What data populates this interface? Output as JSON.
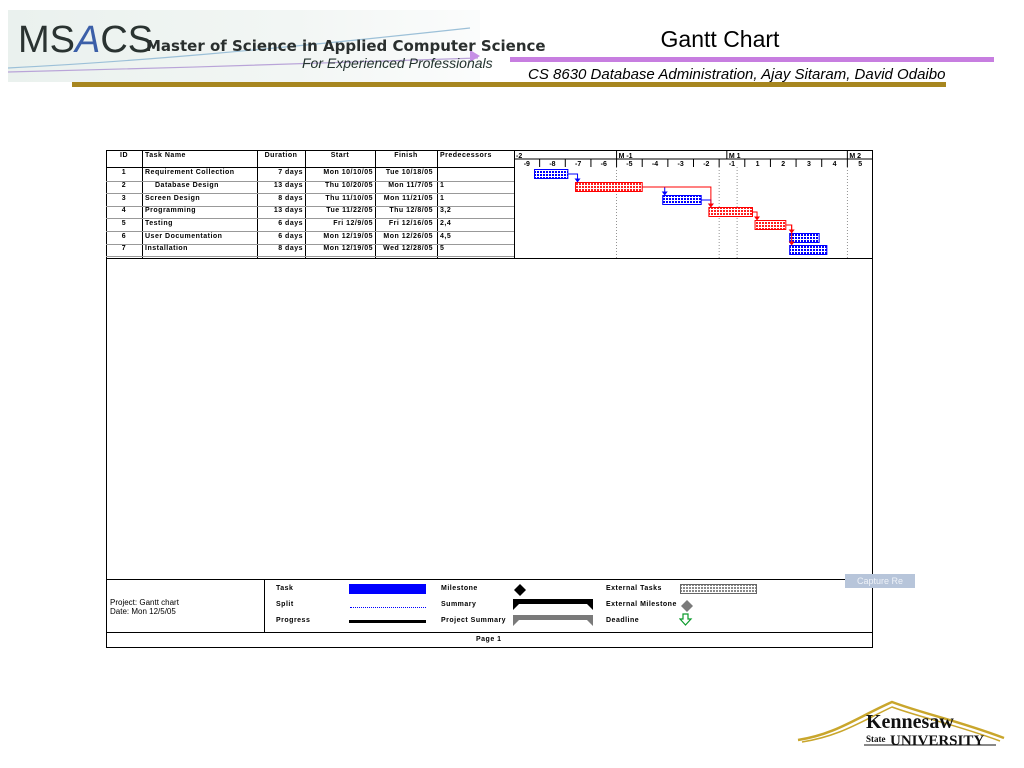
{
  "header": {
    "logo_ms": "MS",
    "logo_a": "A",
    "logo_cs": "CS",
    "logo_text": "Master of Science in Applied Computer Science",
    "logo_tagline": "For Experienced Professionals",
    "slide_title": "Gantt Chart",
    "course_line": "CS 8630 Database Administration, Ajay Sitaram, David Odaibo"
  },
  "colors": {
    "logo_blue": "#3b5fa8",
    "purple_rule": "#c77ee0",
    "gold_rule": "#a7861f",
    "task_blue": "#0000ff",
    "critical_red": "#ff0000"
  },
  "chart_data": {
    "type": "gantt",
    "columns": [
      "ID",
      "Task Name",
      "Duration",
      "Start",
      "Finish",
      "Predecessors"
    ],
    "timescale_top": [
      "-2",
      "M -1",
      "M 1",
      "M 2"
    ],
    "timescale_bottom": [
      "-9",
      "-8",
      "-7",
      "-6",
      "-5",
      "-4",
      "-3",
      "-2",
      "-1",
      "1",
      "2",
      "3",
      "4",
      "5"
    ],
    "tasks": [
      {
        "id": "1",
        "name": "Requirement Collection",
        "duration": "7 days",
        "start": "Mon 10/10/05",
        "finish": "Tue 10/18/05",
        "predecessors": "",
        "indent": 0,
        "critical": false
      },
      {
        "id": "2",
        "name": "Database Design",
        "duration": "13 days",
        "start": "Thu 10/20/05",
        "finish": "Mon 11/7/05",
        "predecessors": "1",
        "indent": 1,
        "critical": true
      },
      {
        "id": "3",
        "name": "Screen Design",
        "duration": "8 days",
        "start": "Thu 11/10/05",
        "finish": "Mon 11/21/05",
        "predecessors": "1",
        "indent": 0,
        "critical": false
      },
      {
        "id": "4",
        "name": "Programming",
        "duration": "13 days",
        "start": "Tue 11/22/05",
        "finish": "Thu 12/8/05",
        "predecessors": "3,2",
        "indent": 0,
        "critical": true
      },
      {
        "id": "5",
        "name": "Testing",
        "duration": "6 days",
        "start": "Fri 12/9/05",
        "finish": "Fri 12/16/05",
        "predecessors": "2,4",
        "indent": 0,
        "critical": true
      },
      {
        "id": "6",
        "name": "User Documentation",
        "duration": "6 days",
        "start": "Mon 12/19/05",
        "finish": "Mon 12/26/05",
        "predecessors": "4,5",
        "indent": 0,
        "critical": false
      },
      {
        "id": "7",
        "name": "Installation",
        "duration": "8 days",
        "start": "Mon 12/19/05",
        "finish": "Wed 12/28/05",
        "predecessors": "5",
        "indent": 0,
        "critical": false
      }
    ],
    "bars": [
      {
        "task": "1",
        "start_week": -8.2,
        "end_week": -6.9
      },
      {
        "task": "2",
        "start_week": -6.6,
        "end_week": -4.0
      },
      {
        "task": "3",
        "start_week": -3.2,
        "end_week": -1.7
      },
      {
        "task": "4",
        "start_week": -1.4,
        "end_week": 1.3
      },
      {
        "task": "5",
        "start_week": 1.4,
        "end_week": 2.6
      },
      {
        "task": "6",
        "start_week": 2.75,
        "end_week": 3.9
      },
      {
        "task": "7",
        "start_week": 2.75,
        "end_week": 4.2
      }
    ]
  },
  "footer": {
    "project": "Project: Gantt chart",
    "date": "Date: Mon 12/5/05",
    "legend": {
      "task": "Task",
      "split": "Split",
      "progress": "Progress",
      "milestone": "Milestone",
      "summary": "Summary",
      "project_summary": "Project Summary",
      "external_tasks": "External Tasks",
      "external_milestone": "External Milestone",
      "deadline": "Deadline"
    },
    "page": "Page 1"
  },
  "overlay": {
    "capture": "Capture Re"
  },
  "ksu_logo": {
    "line1": "Kennesaw",
    "state": "State",
    "line2": "UNIVERSITY"
  }
}
